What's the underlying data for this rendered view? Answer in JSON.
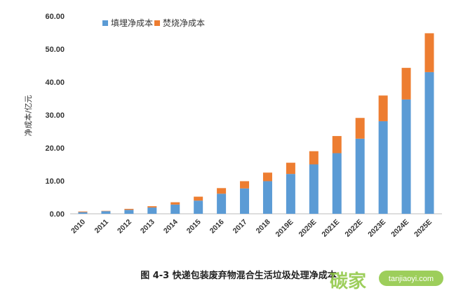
{
  "chart_data": {
    "type": "bar",
    "stacked": true,
    "title": "图 4-3 快递包装废弃物混合生活垃圾处理净成本",
    "xlabel": "",
    "ylabel": "净成本/亿元",
    "ylim": [
      0,
      60
    ],
    "yticks": [
      "0.00",
      "10.00",
      "20.00",
      "30.00",
      "40.00",
      "50.00",
      "60.00"
    ],
    "legend_position": "top-left",
    "grid": false,
    "categories": [
      "2010",
      "2011",
      "2012",
      "2013",
      "2014",
      "2015",
      "2016",
      "2017",
      "2018",
      "2019E",
      "2020E",
      "2021E",
      "2022E",
      "2023E",
      "2024E",
      "2025E"
    ],
    "series": [
      {
        "name": "填埋净成本",
        "color": "#5b9bd5",
        "values": [
          0.5,
          0.8,
          1.2,
          1.9,
          2.8,
          4.0,
          6.1,
          7.7,
          9.9,
          12.1,
          15.0,
          18.4,
          22.8,
          28.1,
          34.7,
          43.0
        ]
      },
      {
        "name": "焚烧净成本",
        "color": "#ed7d31",
        "values": [
          0.2,
          0.1,
          0.3,
          0.4,
          0.7,
          1.2,
          1.7,
          2.2,
          2.6,
          3.4,
          4.0,
          5.2,
          6.3,
          7.8,
          9.6,
          11.8
        ]
      }
    ]
  },
  "watermark": {
    "brand": "碳家",
    "site": "tanjiaoyi.com"
  }
}
